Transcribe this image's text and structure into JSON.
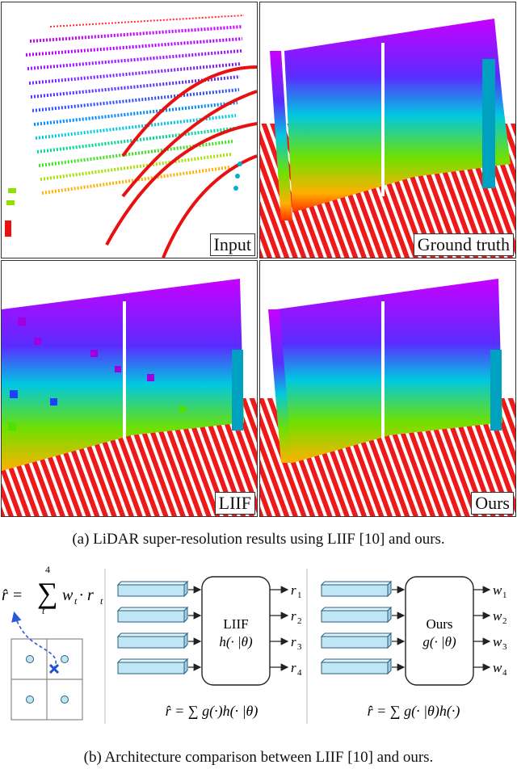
{
  "panels": [
    {
      "label": "Input"
    },
    {
      "label": "Ground truth"
    },
    {
      "label": "LIIF"
    },
    {
      "label": "Ours"
    }
  ],
  "caption_a": "(a)  LiDAR super-resolution results using LIIF [10] and ours.",
  "caption_b": "(b)  Architecture comparison between LIIF [10] and ours.",
  "diagram": {
    "left_formula": {
      "lhs": "r̂ =",
      "sum_top": "4",
      "sum_bottom": "t",
      "body": "w",
      "body_sub": "t",
      "dot": "· r",
      "dot_sub": "t"
    },
    "liif": {
      "name": "LIIF",
      "func": "h(· |θ)",
      "outputs": [
        "r",
        "r",
        "r",
        "r"
      ],
      "output_subs": [
        "1",
        "2",
        "3",
        "4"
      ],
      "formula": "r̂ = ∑ g(·)h(· |θ)"
    },
    "ours": {
      "name": "Ours",
      "func": "g(· |θ)",
      "outputs": [
        "w",
        "w",
        "w",
        "w"
      ],
      "output_subs": [
        "1",
        "2",
        "3",
        "4"
      ],
      "formula": "r̂ = ∑ g(· |θ)h(·)"
    },
    "colors": {
      "feature_fill": "#bfe6f5",
      "feature_stroke": "#2f5f7a",
      "arrow_dashed": "#2a5bd7",
      "cross": "#1f4fd0",
      "dot_fill": "#bfe6f5"
    }
  }
}
